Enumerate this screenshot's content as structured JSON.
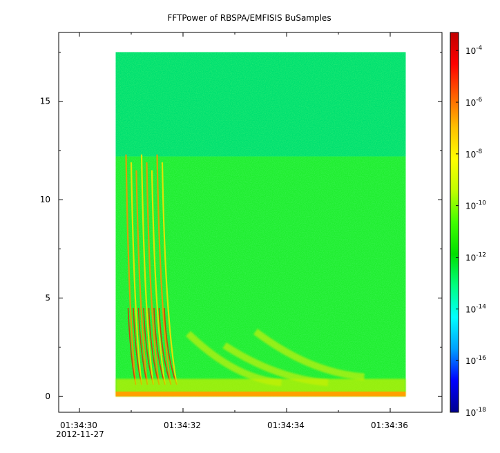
{
  "chart_data": {
    "type": "heatmap",
    "title": "FFTPower of RBSPA/EMFISIS  BuSamples",
    "xlabel": "",
    "ylabel": "",
    "x_range_seconds": [
      "01:34:29.6",
      "01:34:37.0"
    ],
    "x_ticks": [
      {
        "time": "01:34:30",
        "label": "01:34:30",
        "sublabel": "2012-11-27"
      },
      {
        "time": "01:34:32",
        "label": "01:34:32",
        "sublabel": ""
      },
      {
        "time": "01:34:34",
        "label": "01:34:34",
        "sublabel": ""
      },
      {
        "time": "01:34:36",
        "label": "01:34:36",
        "sublabel": ""
      }
    ],
    "x_minor_ticks": [
      "01:34:31",
      "01:34:33",
      "01:34:35"
    ],
    "data_time_range": [
      "01:34:30.7",
      "01:34:36.3"
    ],
    "ylim": [
      -0.8,
      18.5
    ],
    "y_ticks": [
      0,
      5,
      10,
      15
    ],
    "y_ticks_labels": [
      "0",
      "5",
      "10",
      "15"
    ],
    "data_freq_range": [
      0,
      17.5
    ],
    "noise_floor_cutoff": 12.2,
    "colorbar": {
      "scale": "log",
      "range": [
        -18,
        -3.3
      ],
      "ticks": [
        {
          "exp": -4,
          "label": "10",
          "sup": "-4"
        },
        {
          "exp": -6,
          "label": "10",
          "sup": "-6"
        },
        {
          "exp": -8,
          "label": "10",
          "sup": "-8"
        },
        {
          "exp": -10,
          "label": "10",
          "sup": "-10"
        },
        {
          "exp": -12,
          "label": "10",
          "sup": "-12"
        },
        {
          "exp": -14,
          "label": "10",
          "sup": "-14"
        },
        {
          "exp": -16,
          "label": "10",
          "sup": "-16"
        },
        {
          "exp": -18,
          "label": "10",
          "sup": "-18"
        }
      ],
      "colormap": [
        "#00008f",
        "#0000ff",
        "#00a0ff",
        "#00ffff",
        "#00ff80",
        "#00e000",
        "#40ff00",
        "#c0ff00",
        "#ffff00",
        "#ffc000",
        "#ff6000",
        "#ff0000",
        "#c00000"
      ]
    },
    "features": {
      "background_upper_color": "#00e070",
      "background_lower_color": "#20ee30",
      "baseline_color": "#ffa000",
      "chorus_times": [
        "01:34:30.9",
        "01:34:31.0",
        "01:34:31.1",
        "01:34:31.2",
        "01:34:31.3",
        "01:34:31.4",
        "01:34:31.5",
        "01:34:31.6"
      ],
      "arc_band_color": "#f0f000"
    }
  }
}
